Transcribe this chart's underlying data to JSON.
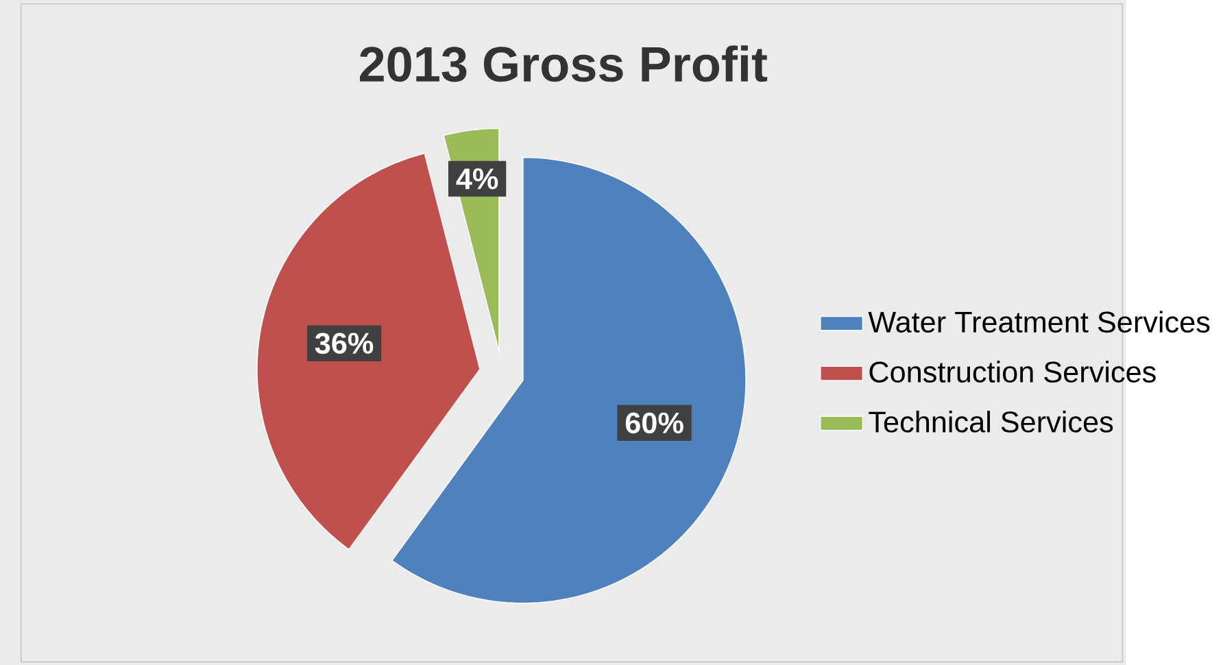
{
  "chart_data": {
    "type": "pie",
    "title": "2013 Gross Profit",
    "categories": [
      "Water Treatment Services",
      "Construction Services",
      "Technical Services"
    ],
    "values": [
      60,
      36,
      4
    ],
    "value_labels": [
      "60%",
      "36%",
      "4%"
    ],
    "colors": [
      "#4f81bd",
      "#c0504d",
      "#9bbb59"
    ],
    "legend": "right"
  }
}
